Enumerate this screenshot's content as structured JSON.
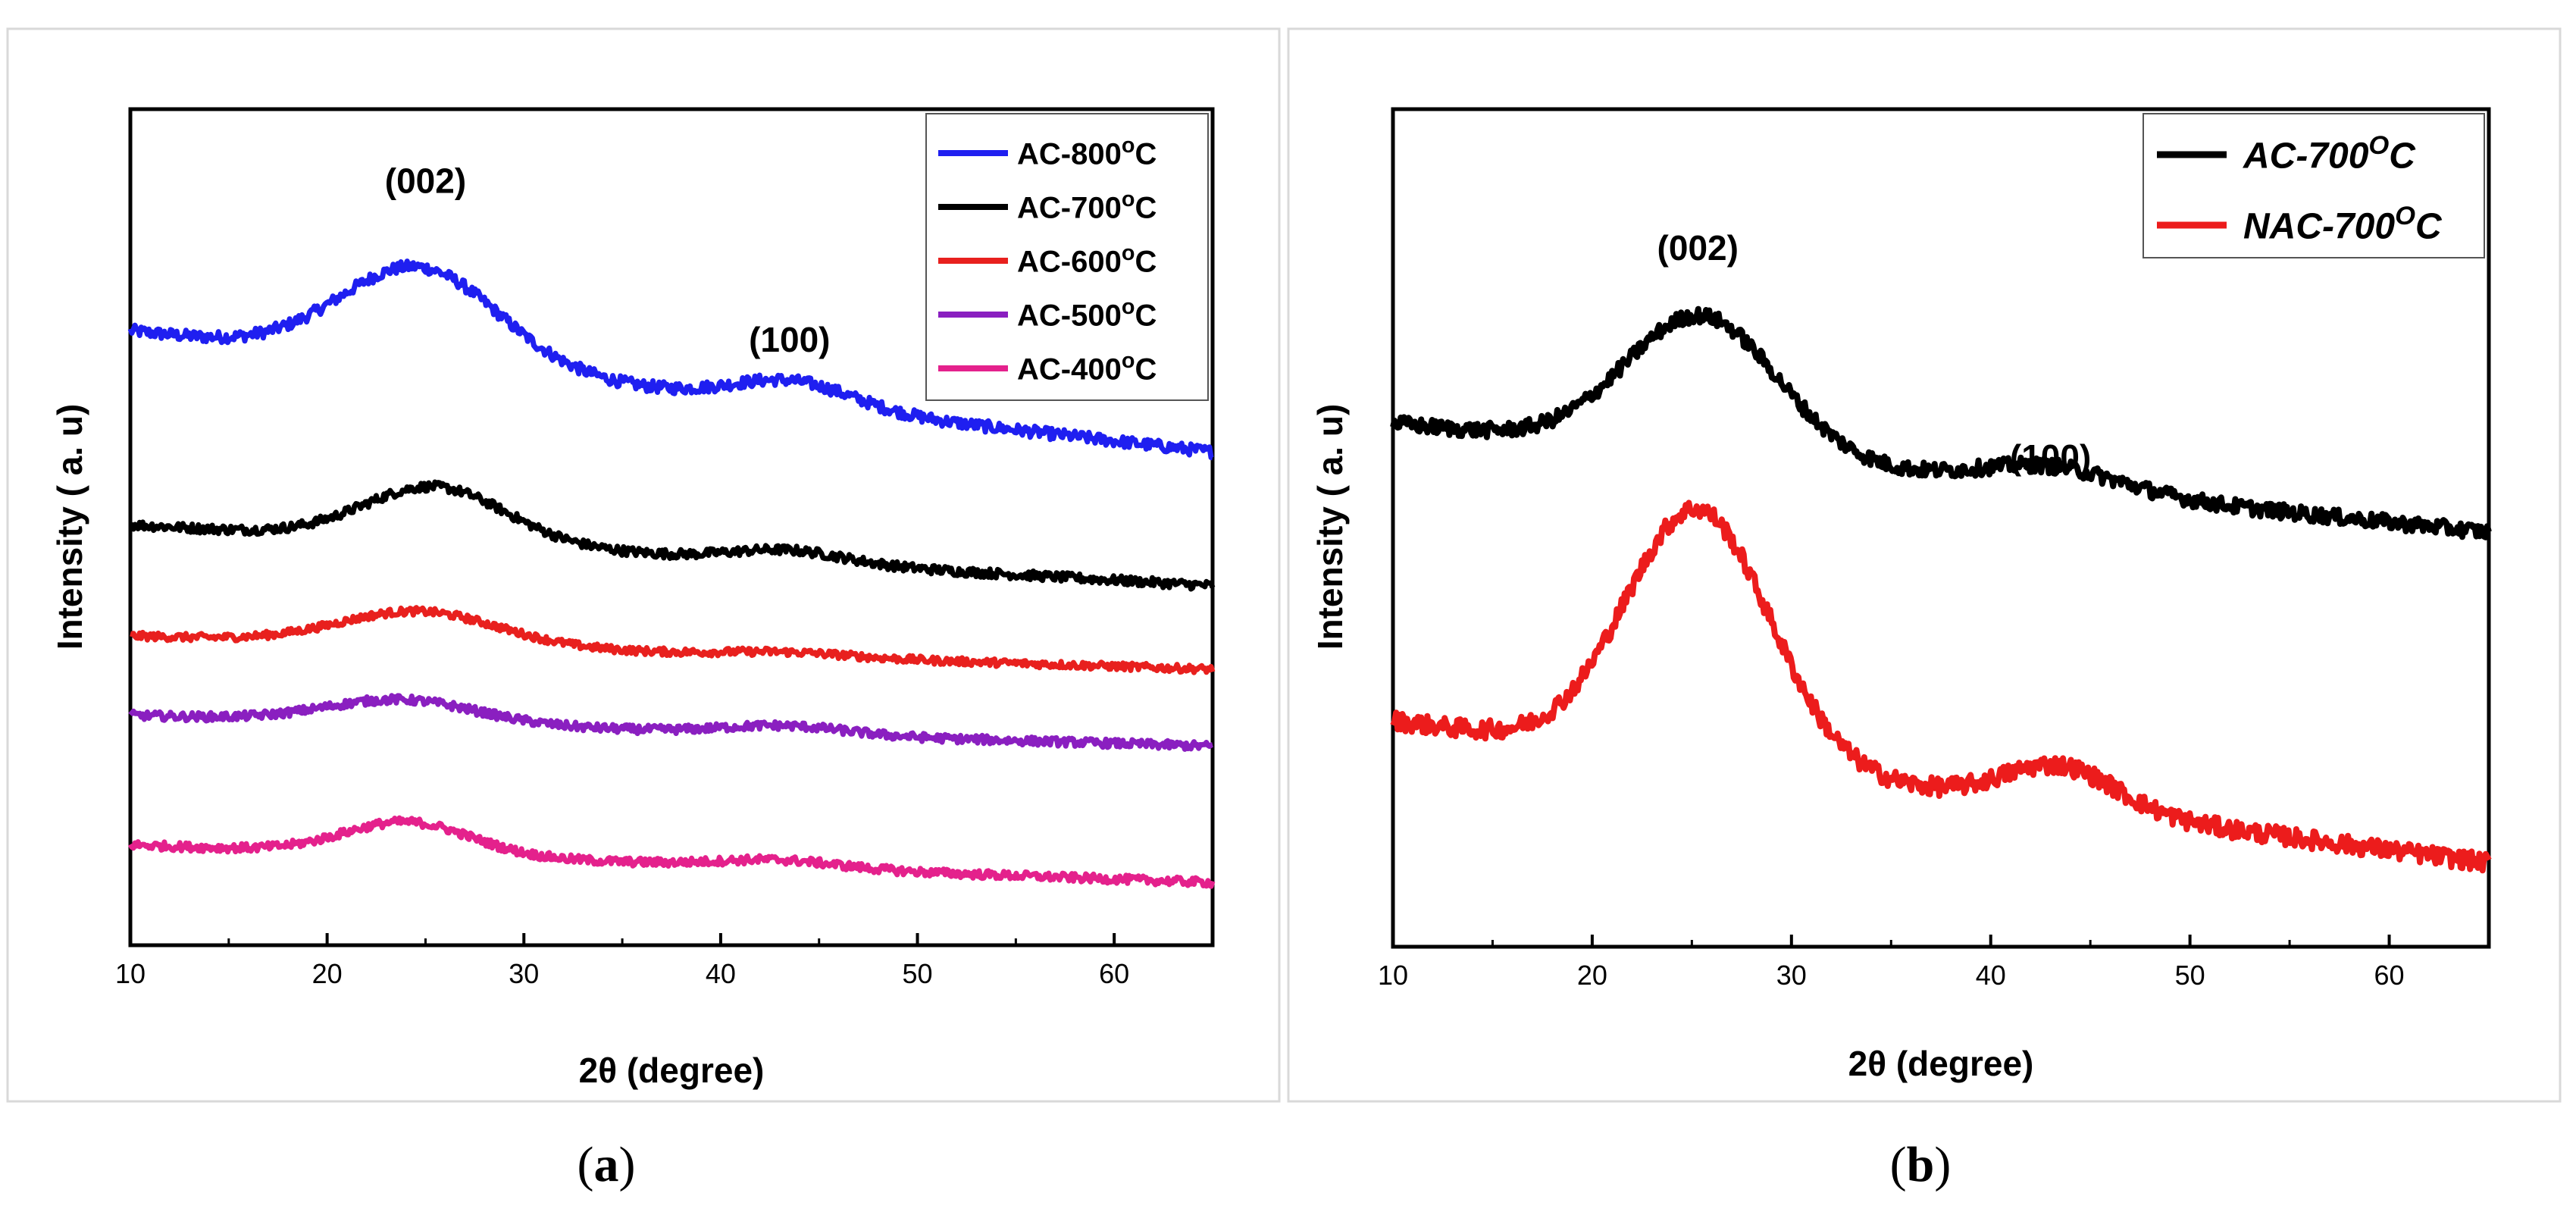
{
  "figure": {
    "panel_labels": {
      "a": {
        "open": "(",
        "letter": "a",
        "close": ")"
      },
      "b": {
        "open": "(",
        "letter": "b",
        "close": ")"
      }
    }
  },
  "chart_data": [
    {
      "id": "a",
      "type": "line",
      "title": "",
      "xlabel": "2θ (degree)",
      "ylabel": "Intensity ( a. u)",
      "xlim": [
        10,
        65
      ],
      "ylim": [
        0,
        100
      ],
      "x_ticks": [
        10,
        20,
        30,
        40,
        50,
        60
      ],
      "y_ticks": [],
      "grid": false,
      "legend_position": "top-right",
      "legend_style": "bold",
      "series": [
        {
          "name": "AC-800",
          "sup": "o",
          "unit": "C",
          "color": "#1f1ff0",
          "baseline": 73.5,
          "tail": -14.5,
          "p1": {
            "center": 24.7,
            "height": 11.5,
            "width": 4.0
          },
          "p2": {
            "center": 43.7,
            "height": 2.9,
            "width": 3.0
          },
          "noise": 0.7
        },
        {
          "name": "AC-700",
          "sup": "o",
          "unit": "C",
          "color": "#000000",
          "baseline": 50.3,
          "tail": -7.3,
          "p1": {
            "center": 25.5,
            "height": 6.6,
            "width": 3.6
          },
          "p2": {
            "center": 43.5,
            "height": 1.4,
            "width": 2.8
          },
          "noise": 0.55
        },
        {
          "name": "AC-600",
          "sup": "o",
          "unit": "C",
          "color": "#e8201e",
          "baseline": 37.0,
          "tail": -4.0,
          "p1": {
            "center": 24.7,
            "height": 4.0,
            "width": 4.0
          },
          "p2": {
            "center": 43.5,
            "height": 0.5,
            "width": 3.0
          },
          "noise": 0.45
        },
        {
          "name": "AC-500",
          "sup": "o",
          "unit": "C",
          "color": "#8a1fc0",
          "baseline": 27.5,
          "tail": -3.7,
          "p1": {
            "center": 23.8,
            "height": 2.8,
            "width": 3.8
          },
          "p2": {
            "center": 43.3,
            "height": 1.0,
            "width": 3.0
          },
          "noise": 0.5
        },
        {
          "name": "AC-400",
          "sup": "o",
          "unit": "C",
          "color": "#e4218c",
          "baseline": 12.0,
          "tail": -4.5,
          "p1": {
            "center": 24.1,
            "height": 3.9,
            "width": 3.2
          },
          "p2": {
            "center": 43.0,
            "height": 0.9,
            "width": 3.0
          },
          "noise": 0.5
        }
      ],
      "annotations": [
        {
          "text": "(002)",
          "x": 25.0,
          "y": 90.0
        },
        {
          "text": "(100)",
          "x": 43.5,
          "y": 71.0
        }
      ]
    },
    {
      "id": "b",
      "type": "line",
      "title": "",
      "xlabel": "2θ (degree)",
      "ylabel": "Intensity ( a. u)",
      "xlim": [
        10,
        65
      ],
      "ylim": [
        0,
        100
      ],
      "x_ticks": [
        10,
        20,
        30,
        40,
        50,
        60
      ],
      "y_ticks": [],
      "grid": false,
      "legend_position": "top-right",
      "legend_style": "bold-italic",
      "series": [
        {
          "name": "AC-700",
          "sup": "O",
          "unit": "C",
          "color": "#000000",
          "baseline": 62.5,
          "tail": -13.0,
          "p1": {
            "center": 25.5,
            "height": 16.5,
            "width": 3.8
          },
          "p2": {
            "center": 43.0,
            "height": 2.7,
            "width": 3.5
          },
          "noise": 0.9
        },
        {
          "name": "NAC-700",
          "sup": "O",
          "unit": "C",
          "color": "#ec1c1c",
          "baseline": 27.0,
          "tail": -17.0,
          "p1": {
            "center": 25.3,
            "height": 30.0,
            "width": 3.6
          },
          "p2": {
            "center": 43.5,
            "height": 5.0,
            "width": 2.8
          },
          "noise": 1.1
        }
      ],
      "annotations": [
        {
          "text": "(002)",
          "x": 25.3,
          "y": 82.0
        },
        {
          "text": "(100)",
          "x": 43.0,
          "y": 57.0
        }
      ]
    }
  ]
}
